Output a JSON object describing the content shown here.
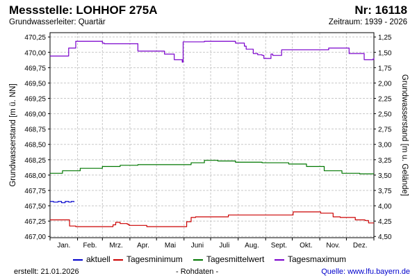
{
  "header": {
    "title": "Messstelle: LOHHOF 275A",
    "number": "Nr: 16118",
    "aquifer": "Grundwasserleiter: Quartär",
    "period": "Zeitraum: 1939 - 2026"
  },
  "footer": {
    "created": "erstellt:  21.01.2026",
    "rawdata": "- Rohdaten -",
    "source": "Quelle: www.lfu.bayern.de"
  },
  "colors": {
    "aktuell": "#0000cc",
    "min": "#cc0000",
    "mean": "#007700",
    "max": "#7a00cc",
    "grid": "#c8c8c8"
  },
  "chart_data": {
    "type": "line",
    "ylabel_left": "Grundwasserstand [m ü. NN]",
    "ylabel_right": "Grundwasserstand [m u. Gelände]",
    "ylim": [
      466.98,
      470.32
    ],
    "y_ticks": [
      "470,25",
      "470,00",
      "469,75",
      "469,50",
      "469,25",
      "469,00",
      "468,75",
      "468,50",
      "468,25",
      "468,00",
      "467,75",
      "467,50",
      "467,25",
      "467,00"
    ],
    "y_tick_values": [
      470.25,
      470.0,
      469.75,
      469.5,
      469.25,
      469.0,
      468.75,
      468.5,
      468.25,
      468.0,
      467.75,
      467.5,
      467.25,
      467.0
    ],
    "y2_ticks": [
      "1,25",
      "1,50",
      "1,75",
      "2,00",
      "2,25",
      "2,50",
      "2,75",
      "3,00",
      "3,25",
      "3,50",
      "3,75",
      "4,00",
      "4,25",
      "4,50"
    ],
    "y2_tick_values": [
      470.25,
      470.0,
      469.75,
      469.5,
      469.25,
      469.0,
      468.75,
      468.5,
      468.25,
      468.0,
      467.75,
      467.5,
      467.25,
      467.0
    ],
    "x_month_labels": [
      "Jan.",
      "Feb.",
      "Mrz.",
      "Apr.",
      "Mai",
      "Juni",
      "Juli",
      "Aug.",
      "Sept.",
      "Okt.",
      "Nov.",
      "Dez."
    ],
    "xlim": [
      1,
      366
    ],
    "series": [
      {
        "name": "aktuell",
        "color_key": "aktuell",
        "x": [
          1,
          5,
          10,
          14,
          18,
          22,
          25,
          28
        ],
        "y": [
          467.57,
          467.56,
          467.57,
          467.55,
          467.57,
          467.56,
          467.57,
          467.56
        ]
      },
      {
        "name": "Tagesminimum",
        "color_key": "min",
        "x": [
          1,
          20,
          23,
          30,
          60,
          72,
          75,
          80,
          88,
          90,
          110,
          150,
          155,
          160,
          165,
          170,
          200,
          202,
          270,
          275,
          300,
          306,
          320,
          328,
          336,
          345,
          356,
          360,
          366
        ],
        "y": [
          467.27,
          467.27,
          467.17,
          467.16,
          467.16,
          467.19,
          467.23,
          467.21,
          467.2,
          467.18,
          467.16,
          467.16,
          467.24,
          467.31,
          467.32,
          467.32,
          467.32,
          467.35,
          467.35,
          467.4,
          467.4,
          467.38,
          467.32,
          467.31,
          467.31,
          467.27,
          467.26,
          467.22,
          467.22
        ]
      },
      {
        "name": "Tagesmittelwert",
        "color_key": "mean",
        "x": [
          1,
          15,
          35,
          60,
          80,
          100,
          130,
          160,
          175,
          190,
          210,
          240,
          270,
          290,
          310,
          330,
          350,
          366
        ],
        "y": [
          468.03,
          468.07,
          468.11,
          468.14,
          468.16,
          468.17,
          468.17,
          468.2,
          468.24,
          468.23,
          468.21,
          468.2,
          468.18,
          468.14,
          468.07,
          468.03,
          468.02,
          468.02
        ]
      },
      {
        "name": "Tagesmaximum",
        "color_key": "max",
        "x": [
          1,
          18,
          22,
          30,
          40,
          50,
          55,
          60,
          62,
          90,
          100,
          125,
          130,
          140,
          141,
          145,
          150,
          151,
          160,
          175,
          180,
          200,
          210,
          220,
          222,
          230,
          235,
          240,
          242,
          250,
          252,
          262,
          270,
          280,
          290,
          300,
          315,
          335,
          338,
          350,
          355,
          365,
          366
        ],
        "y": [
          469.94,
          469.94,
          470.07,
          470.18,
          470.18,
          470.18,
          470.18,
          470.15,
          470.14,
          470.14,
          470.02,
          470.02,
          469.97,
          469.97,
          469.88,
          469.88,
          469.84,
          470.17,
          470.17,
          470.18,
          470.18,
          470.18,
          470.15,
          470.1,
          470.05,
          469.98,
          469.96,
          469.95,
          469.9,
          469.97,
          469.95,
          470.04,
          470.04,
          470.04,
          470.04,
          470.04,
          470.07,
          470.07,
          469.98,
          469.98,
          469.88,
          469.89,
          469.91
        ]
      }
    ],
    "legend": [
      "aktuell",
      "Tagesminimum",
      "Tagesmittelwert",
      "Tagesmaximum"
    ],
    "legend_position": "bottom",
    "grid": true
  }
}
